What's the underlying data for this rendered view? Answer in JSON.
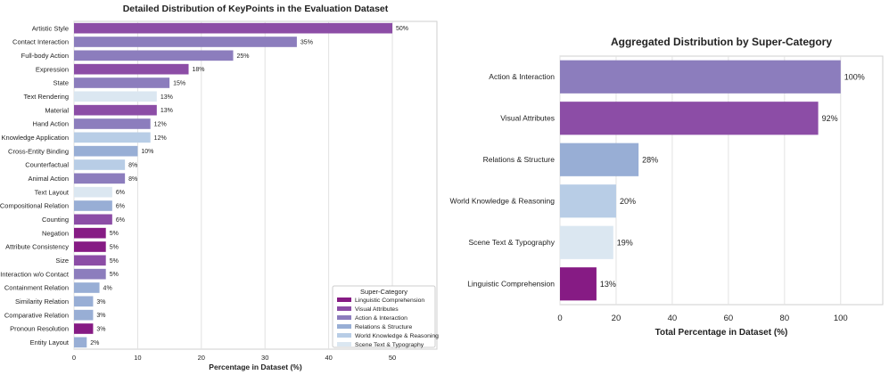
{
  "chart_data": [
    {
      "type": "bar",
      "orientation": "horizontal",
      "title": "Detailed Distribution of KeyPoints in the Evaluation Dataset",
      "xlabel": "Percentage in Dataset (%)",
      "ylabel": "",
      "xlim": [
        0,
        57
      ],
      "xticks": [
        0,
        10,
        20,
        30,
        40,
        50
      ],
      "grid": true,
      "legend_position": "bottom-right",
      "legend_title": "Super-Category",
      "legend": [
        {
          "name": "Linguistic Comprehension",
          "color": "#861b84"
        },
        {
          "name": "Visual Attributes",
          "color": "#8c4da6"
        },
        {
          "name": "Action & Interaction",
          "color": "#8c7dbd"
        },
        {
          "name": "Relations & Structure",
          "color": "#98aed5"
        },
        {
          "name": "World Knowledge & Reasoning",
          "color": "#b8cde6"
        },
        {
          "name": "Scene Text & Typography",
          "color": "#dbe7f1"
        }
      ],
      "categories": [
        "Artistic Style",
        "Contact Interaction",
        "Full-body Action",
        "Expression",
        "State",
        "Text Rendering",
        "Material",
        "Hand Action",
        "Knowledge Application",
        "Cross-Entity Binding",
        "Counterfactual",
        "Animal Action",
        "Text Layout",
        "Compositional Relation",
        "Counting",
        "Negation",
        "Attribute Consistency",
        "Size",
        "Interaction w/o Contact",
        "Containment Relation",
        "Similarity Relation",
        "Comparative Relation",
        "Pronoun Resolution",
        "Entity Layout"
      ],
      "values": [
        50,
        35,
        25,
        18,
        15,
        13,
        13,
        12,
        12,
        10,
        8,
        8,
        6,
        6,
        6,
        5,
        5,
        5,
        5,
        4,
        3,
        3,
        3,
        2
      ],
      "value_labels": [
        "50%",
        "35%",
        "25%",
        "18%",
        "15%",
        "13%",
        "13%",
        "12%",
        "12%",
        "10%",
        "8%",
        "8%",
        "6%",
        "6%",
        "6%",
        "5%",
        "5%",
        "5%",
        "5%",
        "4%",
        "3%",
        "3%",
        "3%",
        "2%"
      ],
      "colors": [
        "#8c4da6",
        "#8c7dbd",
        "#8c7dbd",
        "#8c4da6",
        "#8c7dbd",
        "#dbe7f1",
        "#8c4da6",
        "#8c7dbd",
        "#b8cde6",
        "#98aed5",
        "#b8cde6",
        "#8c7dbd",
        "#dbe7f1",
        "#98aed5",
        "#8c4da6",
        "#861b84",
        "#861b84",
        "#8c4da6",
        "#8c7dbd",
        "#98aed5",
        "#98aed5",
        "#98aed5",
        "#861b84",
        "#98aed5"
      ]
    },
    {
      "type": "bar",
      "orientation": "horizontal",
      "title": "Aggregated Distribution by Super-Category",
      "xlabel": "Total Percentage in Dataset (%)",
      "ylabel": "",
      "xlim": [
        0,
        115
      ],
      "xticks": [
        0,
        20,
        40,
        60,
        80,
        100
      ],
      "grid": true,
      "categories": [
        "Action & Interaction",
        "Visual Attributes",
        "Relations & Structure",
        "World Knowledge & Reasoning",
        "Scene Text & Typography",
        "Linguistic Comprehension"
      ],
      "values": [
        100,
        92,
        28,
        20,
        19,
        13
      ],
      "value_labels": [
        "100%",
        "92%",
        "28%",
        "20%",
        "19%",
        "13%"
      ],
      "colors": [
        "#8c7dbd",
        "#8c4da6",
        "#98aed5",
        "#b8cde6",
        "#dbe7f1",
        "#861b84"
      ]
    }
  ]
}
